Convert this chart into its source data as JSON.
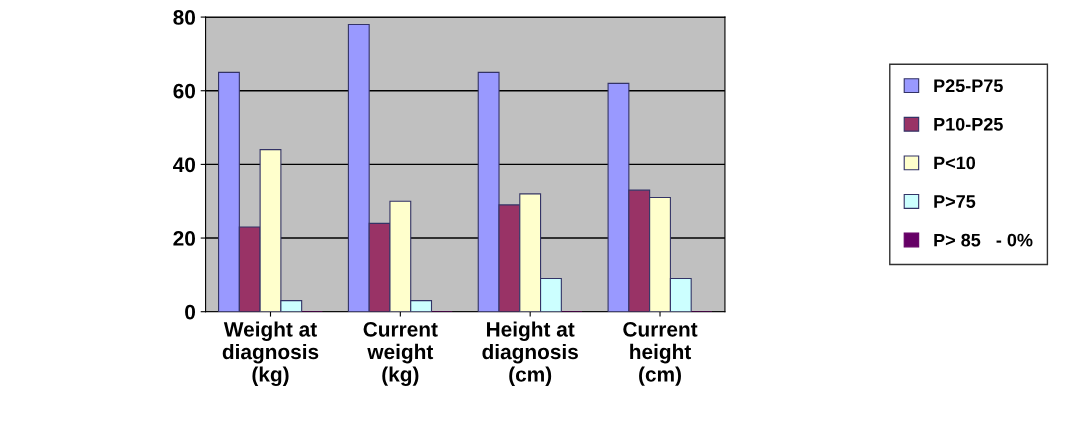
{
  "chart_data": {
    "type": "bar",
    "categories": [
      "Weight at\ndiagnosis\n(kg)",
      "Current\nweight\n(kg)",
      "Height at\ndiagnosis\n(cm)",
      "Current\nheight\n(cm)"
    ],
    "series": [
      {
        "name": "P25-P75",
        "color": "#9999ff",
        "values": [
          65,
          78,
          65,
          62
        ]
      },
      {
        "name": "P10-P25",
        "color": "#993366",
        "values": [
          23,
          24,
          29,
          33
        ]
      },
      {
        "name": "P<10",
        "color": "#ffffcc",
        "values": [
          44,
          30,
          32,
          31
        ]
      },
      {
        "name": "P>75",
        "color": "#ccffff",
        "values": [
          3,
          3,
          9,
          9
        ]
      },
      {
        "name": "P> 85   - 0%",
        "color": "#660066",
        "values": [
          0,
          0,
          0,
          0
        ]
      }
    ],
    "ylim": [
      0,
      80
    ],
    "yticks": [
      0,
      20,
      40,
      60,
      80
    ],
    "grid": "y",
    "legend": "right"
  }
}
